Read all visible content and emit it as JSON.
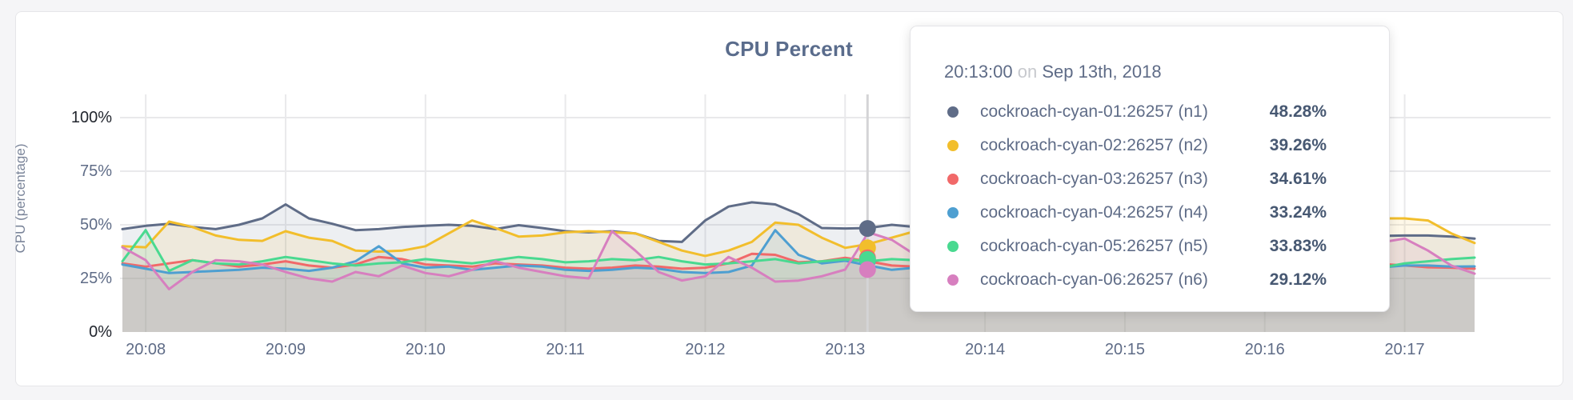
{
  "page": {
    "background": "#F5F5F7"
  },
  "card": {
    "background": "#FFFFFF",
    "border_color": "#E6E6E9"
  },
  "chart_data": {
    "type": "line",
    "title": "CPU Percent",
    "xlabel": "",
    "ylabel": "CPU (percentage)",
    "ylim": [
      0,
      100
    ],
    "grid": true,
    "legend_position": "none",
    "area_fill": true,
    "area_fill_opacity": 0.11,
    "y_ticks": [
      "0%",
      "25%",
      "50%",
      "75%",
      "100%"
    ],
    "y_tick_values": [
      0,
      25,
      50,
      75,
      100
    ],
    "x_ticks": [
      "20:08",
      "20:09",
      "20:10",
      "20:11",
      "20:12",
      "20:13",
      "20:14",
      "20:15",
      "20:16",
      "20:17"
    ],
    "x_start": "20:07:50",
    "x_interval_seconds": 10,
    "series": [
      {
        "name": "cockroach-cyan-01:26257 (n1)",
        "color": "#5F6C87",
        "values": [
          48,
          49.5,
          50.5,
          49,
          48,
          50,
          53,
          59.5,
          53,
          50.5,
          47.5,
          48,
          49,
          49.5,
          50,
          49.5,
          48,
          49.8,
          48.5,
          47,
          46.5,
          47,
          46,
          42.5,
          42,
          52,
          58.5,
          60.5,
          59.5,
          55,
          48.5,
          48.28,
          48.5,
          50,
          49,
          51,
          50,
          49,
          50.5,
          49.5,
          50,
          49,
          50.5,
          50,
          49.5,
          50,
          49,
          50,
          49.5,
          50,
          47,
          45.2,
          45,
          45,
          44.8,
          45,
          45,
          44.5,
          43.6
        ]
      },
      {
        "name": "cockroach-cyan-02:26257 (n2)",
        "color": "#F2BE2C",
        "values": [
          40,
          39.5,
          51.5,
          49,
          45,
          43,
          42.5,
          47,
          44,
          42.5,
          38,
          37.5,
          38,
          40,
          46,
          52,
          48.5,
          44.5,
          45,
          46.5,
          47,
          46.5,
          46,
          42,
          38,
          35.5,
          38,
          42,
          51,
          50,
          44,
          39.26,
          41,
          44,
          47,
          45,
          43,
          46,
          48,
          45,
          44,
          46,
          45,
          47,
          44,
          45,
          46,
          44,
          45,
          46,
          45,
          44,
          38,
          45,
          53,
          53,
          52,
          46,
          41.5
        ]
      },
      {
        "name": "cockroach-cyan-03:26257 (n3)",
        "color": "#F16969",
        "values": [
          32,
          30.5,
          32,
          33.5,
          32,
          30.5,
          31.5,
          33,
          31,
          30,
          31.5,
          35,
          34,
          31.5,
          31,
          30.5,
          32,
          31.5,
          31,
          30,
          29.5,
          30,
          31,
          30.5,
          29.5,
          30,
          32,
          36.5,
          36,
          32.5,
          33,
          34.61,
          33,
          31,
          30.5,
          32,
          31,
          30,
          31.5,
          32,
          30.5,
          31,
          32,
          31.5,
          30,
          31,
          32,
          31,
          30.5,
          31,
          31.7,
          32,
          32.1,
          31.7,
          31.7,
          31,
          30.2,
          30,
          29.5
        ]
      },
      {
        "name": "cockroach-cyan-04:26257 (n4)",
        "color": "#4E9FD1",
        "values": [
          31.5,
          29.5,
          27.5,
          28,
          28.5,
          29,
          30,
          29.5,
          28.5,
          30,
          33,
          40,
          32,
          30,
          30.5,
          29,
          30,
          31,
          30.5,
          29,
          28.5,
          29,
          30,
          29.5,
          28,
          27.5,
          28,
          31,
          47.5,
          36,
          32,
          33.24,
          31,
          29,
          30,
          31,
          30,
          29.5,
          30,
          31,
          29.5,
          30,
          31,
          30,
          29.5,
          30,
          31,
          30.5,
          30,
          29.5,
          30.6,
          29,
          28.4,
          29.5,
          30.2,
          31,
          31,
          30.5,
          30.6
        ]
      },
      {
        "name": "cockroach-cyan-05:26257 (n5)",
        "color": "#49D990",
        "values": [
          33,
          47.5,
          28.5,
          33.5,
          32,
          31.5,
          33,
          35,
          33.5,
          32,
          31,
          32,
          32.5,
          34,
          33,
          32,
          33.5,
          35,
          34,
          32.5,
          33,
          34,
          33.5,
          35,
          33,
          31.5,
          32,
          33,
          34,
          32,
          33,
          33.83,
          33,
          34,
          33.5,
          32,
          33,
          34,
          33,
          32.5,
          33,
          34,
          33,
          32.5,
          33,
          34,
          33.5,
          33,
          34,
          38,
          36,
          33,
          30.6,
          29.5,
          30,
          32,
          33,
          34,
          34.7
        ]
      },
      {
        "name": "cockroach-cyan-06:26257 (n6)",
        "color": "#D77FBF",
        "values": [
          39.5,
          33.5,
          20,
          28,
          33.5,
          33,
          31.5,
          28,
          25,
          23.5,
          28,
          26,
          31,
          27.5,
          26,
          29,
          33,
          30,
          28,
          26,
          25,
          47,
          38,
          28,
          24,
          26,
          35,
          30,
          23.5,
          24,
          26,
          29.12,
          46.5,
          43,
          36,
          30,
          28,
          27,
          29,
          31,
          28,
          27,
          29,
          30,
          28,
          27,
          29,
          28,
          27.5,
          28,
          27.2,
          27,
          28,
          33,
          41.8,
          43.6,
          38,
          31,
          27.2
        ]
      }
    ]
  },
  "hover": {
    "time_index": 31,
    "values_pct": [
      48.28,
      39.26,
      34.61,
      33.24,
      33.83,
      29.12
    ],
    "guideline_color": "#D4D4D6"
  },
  "tooltip": {
    "time": "20:13:00",
    "conjunction": "on",
    "date": "Sep 13th, 2018",
    "rows": [
      {
        "name": "cockroach-cyan-01:26257 (n1)",
        "value": "48.28%",
        "color": "#5F6C87"
      },
      {
        "name": "cockroach-cyan-02:26257 (n2)",
        "value": "39.26%",
        "color": "#F2BE2C"
      },
      {
        "name": "cockroach-cyan-03:26257 (n3)",
        "value": "34.61%",
        "color": "#F16969"
      },
      {
        "name": "cockroach-cyan-04:26257 (n4)",
        "value": "33.24%",
        "color": "#4E9FD1"
      },
      {
        "name": "cockroach-cyan-05:26257 (n5)",
        "value": "33.83%",
        "color": "#49D990"
      },
      {
        "name": "cockroach-cyan-06:26257 (n6)",
        "value": "29.12%",
        "color": "#D77FBF"
      }
    ]
  },
  "colors": {
    "grid": "#E9E9EB",
    "axis_text": "#5F6C87",
    "axis_minmax_text": "#22262E",
    "title_text": "#5A6C8C"
  }
}
